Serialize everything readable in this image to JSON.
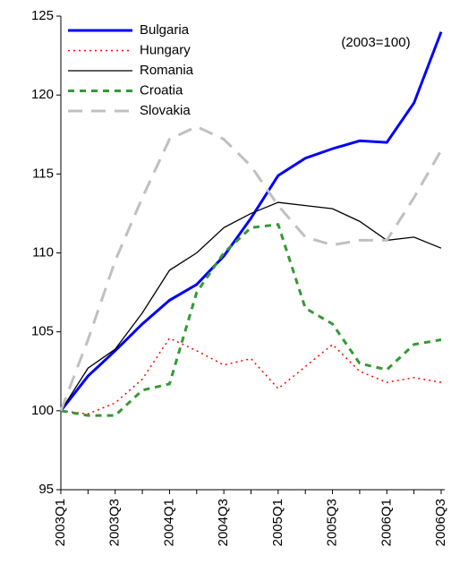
{
  "chart_data": {
    "type": "line",
    "annotation": "(2003=100)",
    "categories": [
      "2003Q1",
      null,
      "2003Q3",
      null,
      "2004Q1",
      null,
      "2004Q3",
      null,
      "2005Q1",
      null,
      "2005Q3",
      null,
      "2006Q1",
      null,
      "2006Q3"
    ],
    "series": [
      {
        "name": "Bulgaria",
        "color": "#0000ff",
        "width": 3,
        "dash": "none",
        "values": [
          100,
          102.2,
          103.8,
          105.5,
          107,
          108,
          109.8,
          112.2,
          114.9,
          116,
          116.6,
          117.1,
          117,
          119.5,
          124
        ]
      },
      {
        "name": "Hungary",
        "color": "#ff0000",
        "width": 1.5,
        "dash": "2 4",
        "values": [
          100,
          99.8,
          100.5,
          102,
          104.6,
          103.8,
          102.9,
          103.3,
          101.4,
          102.8,
          104.2,
          102.5,
          101.8,
          102.1,
          101.8
        ]
      },
      {
        "name": "Romania",
        "color": "#000000",
        "width": 1.3,
        "dash": "none",
        "values": [
          100,
          102.7,
          103.9,
          106.2,
          108.9,
          110,
          111.6,
          112.5,
          113.2,
          113,
          112.8,
          112,
          110.8,
          111,
          110.3
        ]
      },
      {
        "name": "Croatia",
        "color": "#339933",
        "width": 3,
        "dash": "7 6",
        "values": [
          100,
          99.7,
          99.7,
          101.3,
          101.7,
          107.5,
          110,
          111.6,
          111.8,
          106.5,
          105.5,
          103,
          102.6,
          104.2,
          104.5
        ]
      },
      {
        "name": "Slovakia",
        "color": "#c0c0c0",
        "width": 3,
        "dash": "16 10",
        "values": [
          100,
          104.5,
          109.5,
          113.5,
          117.2,
          118,
          117.2,
          115.5,
          113,
          111,
          110.5,
          110.8,
          110.8,
          113.5,
          116.5
        ]
      }
    ],
    "ylim": [
      95,
      125
    ],
    "yticks": [
      95,
      100,
      105,
      110,
      115,
      120,
      125
    ],
    "legend": "top-left",
    "grid": false
  }
}
